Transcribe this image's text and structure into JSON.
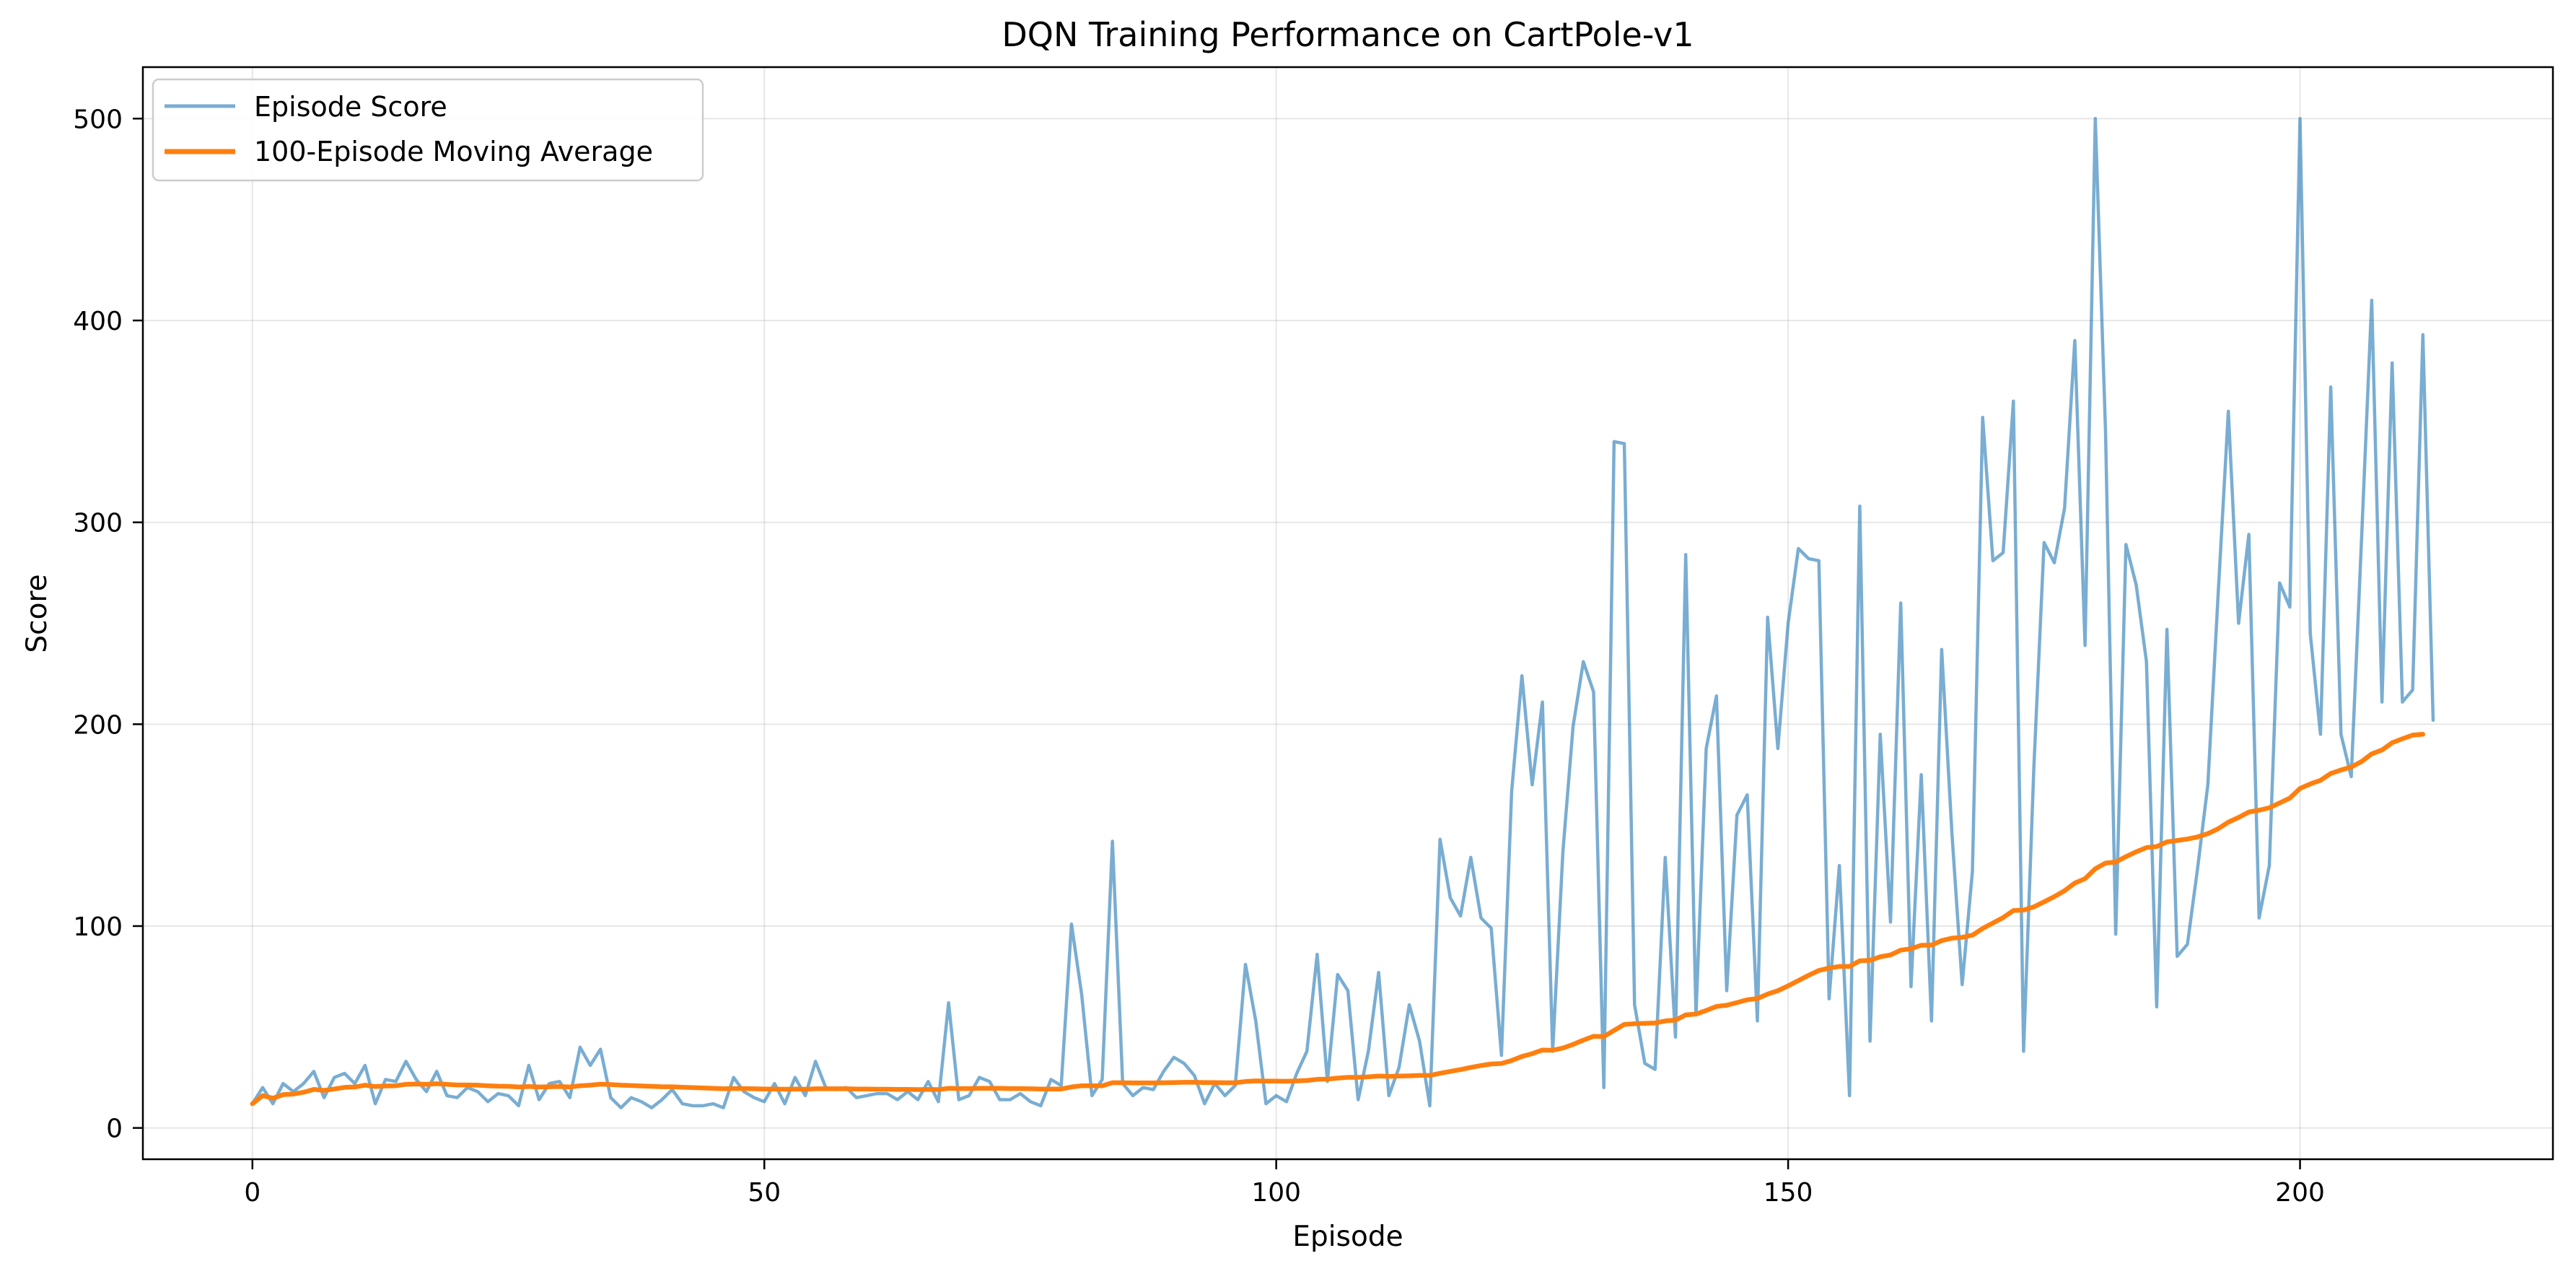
{
  "chart_data": {
    "type": "line",
    "title": "DQN Training Performance on CartPole-v1",
    "xlabel": "Episode",
    "ylabel": "Score",
    "xlim": [
      -10.7,
      224.7
    ],
    "ylim": [
      -15.5,
      525.5
    ],
    "xticks": [
      0,
      50,
      100,
      150,
      200
    ],
    "yticks": [
      0,
      100,
      200,
      300,
      400,
      500
    ],
    "grid": true,
    "legend_position": "upper left",
    "series": [
      {
        "name": "Episode Score",
        "color": "#1f77b4",
        "opacity": 0.6,
        "x_start": 0,
        "x_step": 1,
        "values": [
          12,
          20,
          12,
          22,
          18,
          22,
          28,
          15,
          25,
          27,
          22,
          31,
          12,
          24,
          23,
          33,
          24,
          18,
          28,
          16,
          15,
          20,
          18,
          13,
          17,
          16,
          11,
          31,
          14,
          22,
          23,
          15,
          40,
          31,
          39,
          15,
          10,
          15,
          13,
          10,
          14,
          19,
          12,
          11,
          11,
          12,
          10,
          25,
          18,
          15,
          13,
          22,
          12,
          25,
          16,
          33,
          20,
          19,
          20,
          15,
          16,
          17,
          17,
          14,
          18,
          14,
          23,
          13,
          62,
          14,
          16,
          25,
          23,
          14,
          14,
          17,
          13,
          11,
          24,
          21,
          101,
          66,
          16,
          24,
          142,
          22,
          16,
          20,
          19,
          28,
          35,
          32,
          26,
          12,
          22,
          16,
          21,
          81,
          53,
          12,
          16,
          13,
          27,
          38,
          86,
          23,
          76,
          68,
          14,
          38,
          77,
          16,
          30,
          61,
          43,
          11,
          143,
          114,
          105,
          134,
          104,
          99,
          36,
          167,
          224,
          170,
          211,
          38,
          137,
          199,
          231,
          216,
          20,
          340,
          339,
          61,
          32,
          29,
          134,
          45,
          284,
          56,
          188,
          214,
          68,
          155,
          165,
          53,
          253,
          188,
          250,
          287,
          282,
          281,
          64,
          130,
          16,
          308,
          43,
          195,
          102,
          260,
          70,
          175,
          53,
          237,
          146,
          71,
          127,
          352,
          281,
          285,
          360,
          38,
          178,
          290,
          280,
          307,
          390,
          239,
          500,
          345,
          96,
          289,
          269,
          231,
          60,
          247,
          85,
          91,
          129,
          170,
          264,
          355,
          250,
          294,
          104,
          130,
          270,
          258,
          500,
          245,
          195,
          367,
          195,
          174,
          291,
          410,
          211,
          379,
          211,
          217,
          393,
          202
        ]
      },
      {
        "name": "100-Episode Moving Average",
        "color": "#ff7f0e",
        "opacity": 1,
        "x_start": 0,
        "x_step": 1,
        "values": [
          12,
          16,
          14.7,
          16.5,
          16.8,
          17.7,
          19.1,
          18.6,
          19.3,
          20.1,
          20.3,
          21.2,
          20.5,
          20.8,
          20.9,
          21.6,
          21.8,
          21.6,
          21.9,
          21.6,
          21.3,
          21.3,
          21.2,
          20.9,
          20.7,
          20.6,
          20.3,
          20.5,
          20.3,
          20.4,
          20.5,
          20.3,
          20.9,
          21.2,
          21.7,
          21.5,
          21.2,
          21.0,
          20.8,
          20.6,
          20.4,
          20.4,
          20.2,
          20.0,
          19.8,
          19.6,
          19.4,
          19.5,
          19.5,
          19.4,
          19.3,
          19.3,
          19.2,
          19.3,
          19.2,
          19.4,
          19.4,
          19.4,
          19.4,
          19.3,
          19.3,
          19.2,
          19.2,
          19.1,
          19.1,
          19.0,
          19.1,
          19.0,
          19.6,
          19.5,
          19.5,
          19.6,
          19.6,
          19.6,
          19.5,
          19.5,
          19.4,
          19.3,
          19.3,
          19.3,
          20.3,
          20.9,
          20.9,
          20.9,
          22.4,
          22.4,
          22.3,
          22.3,
          22.3,
          22.4,
          22.5,
          22.6,
          22.6,
          22.5,
          22.5,
          22.4,
          22.4,
          23.0,
          23.3,
          23.2,
          23.2,
          23.1,
          23.3,
          23.5,
          24.1,
          24.2,
          24.7,
          25.1,
          25.1,
          25.3,
          25.7,
          25.5,
          25.7,
          25.8,
          26.0,
          26.0,
          27.1,
          28.0,
          28.9,
          30.0,
          30.9,
          31.7,
          31.9,
          33.4,
          35.4,
          36.8,
          38.6,
          38.5,
          39.6,
          41.4,
          43.5,
          45.4,
          45.3,
          48.3,
          51.3,
          51.6,
          51.8,
          52.0,
          53.0,
          53.4,
          56.0,
          56.4,
          58.2,
          60.2,
          60.8,
          62.1,
          63.5,
          64.1,
          66.3,
          68.0,
          70.4,
          73.0,
          75.6,
          78.0,
          79.2,
          80.0,
          80.0,
          82.8,
          83.0,
          84.8,
          85.7,
          88.1,
          88.8,
          90.5,
          90.6,
          92.8,
          94.0,
          94.4,
          95.5,
          98.8,
          101.5,
          104.2,
          107.7,
          107.9,
          109.5,
          112.0,
          114.6,
          117.5,
          121.3,
          123.5,
          128.4,
          131.2,
          131.7,
          134.4,
          136.8,
          138.9,
          139.4,
          141.7,
          142.4,
          143.1,
          144.2,
          145.8,
          148.2,
          151.5,
          153.8,
          156.5,
          157.4,
          158.6,
          161.0,
          163.4,
          168.2,
          170.4,
          172.2,
          175.6,
          177.3,
          178.8,
          181.5,
          185.3,
          187.2,
          190.8,
          192.8,
          194.6,
          195
        ]
      }
    ]
  }
}
